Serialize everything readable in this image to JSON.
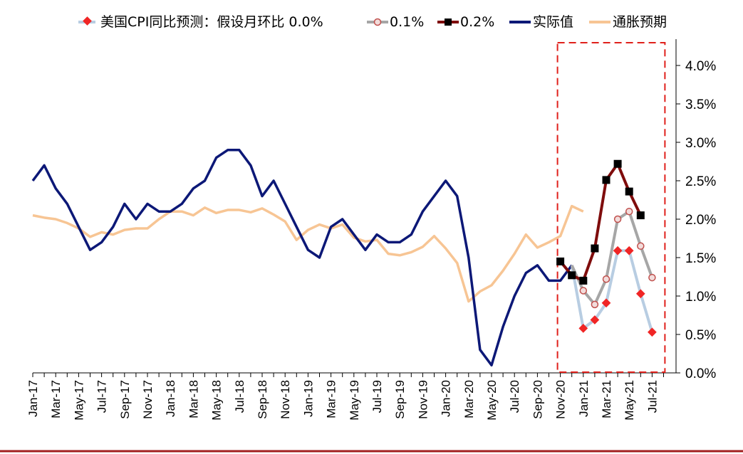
{
  "chart_data": {
    "type": "line",
    "legend": {
      "placement": "top",
      "prefix": "美国CPI同比预测：假设月环比",
      "entries": [
        {
          "key": "s0",
          "label": "0.0%"
        },
        {
          "key": "s1",
          "label": "0.1%"
        },
        {
          "key": "s2",
          "label": "0.2%"
        },
        {
          "key": "actual",
          "label": "实际值"
        },
        {
          "key": "expect",
          "label": "通胀预期"
        }
      ]
    },
    "x_tick_labels": [
      "Jan-17",
      "Mar-17",
      "May-17",
      "Jul-17",
      "Sep-17",
      "Nov-17",
      "Jan-18",
      "Mar-18",
      "May-18",
      "Jul-18",
      "Sep-18",
      "Nov-18",
      "Jan-19",
      "Mar-19",
      "May-19",
      "Jul-19",
      "Sep-19",
      "Nov-19",
      "Jan-20",
      "Mar-20",
      "May-20",
      "Jul-20",
      "Sep-20",
      "Nov-20",
      "Jan-21",
      "Mar-21",
      "May-21",
      "Jul-21"
    ],
    "x_start": "Jan-17",
    "x_interval": "month",
    "y_axis": {
      "position": "right",
      "min": 0,
      "max": 4.0,
      "step": 0.5,
      "format": "percent"
    },
    "y_tick_labels": [
      "0.0%",
      "0.5%",
      "1.0%",
      "1.5%",
      "2.0%",
      "2.5%",
      "3.0%",
      "3.5%",
      "4.0%"
    ],
    "highlight_box": {
      "from": "Nov-20",
      "to": "Jul-21",
      "style": "dashed",
      "color": "#e0201b"
    },
    "series": [
      {
        "key": "actual",
        "name": "实际值",
        "color": "#0c1877",
        "start": "Jan-17",
        "values": [
          2.5,
          2.7,
          2.4,
          2.2,
          1.9,
          1.6,
          1.7,
          1.9,
          2.2,
          2.0,
          2.2,
          2.1,
          2.1,
          2.2,
          2.4,
          2.5,
          2.8,
          2.9,
          2.9,
          2.7,
          2.3,
          2.5,
          2.2,
          1.9,
          1.6,
          1.5,
          1.9,
          2.0,
          1.8,
          1.6,
          1.8,
          1.7,
          1.7,
          1.8,
          2.1,
          2.3,
          2.5,
          2.3,
          1.5,
          0.3,
          0.1,
          0.6,
          1.0,
          1.3,
          1.4,
          1.2,
          1.2,
          1.4
        ]
      },
      {
        "key": "expect",
        "name": "通胀预期",
        "color": "#f7c594",
        "start": "Jan-17",
        "values": [
          2.05,
          2.02,
          2.0,
          1.95,
          1.88,
          1.77,
          1.83,
          1.8,
          1.86,
          1.88,
          1.88,
          2.0,
          2.1,
          2.1,
          2.05,
          2.15,
          2.08,
          2.12,
          2.12,
          2.09,
          2.14,
          2.06,
          1.97,
          1.73,
          1.86,
          1.93,
          1.88,
          1.93,
          1.76,
          1.71,
          1.73,
          1.55,
          1.53,
          1.57,
          1.64,
          1.78,
          1.62,
          1.43,
          0.93,
          1.06,
          1.14,
          1.33,
          1.55,
          1.8,
          1.63,
          1.7,
          1.78,
          2.17,
          2.1
        ]
      },
      {
        "key": "s0",
        "name": "0.0%",
        "color": "#b8cde2",
        "marker": "diamond",
        "marker_color": "#f02525",
        "start": "Dec-20",
        "values": [
          1.4,
          0.58,
          0.69,
          0.91,
          1.59,
          1.59,
          1.03,
          0.53
        ]
      },
      {
        "key": "s1",
        "name": "0.1%",
        "color": "#a6a6a6",
        "marker": "circle",
        "marker_color": "#c0504d",
        "start": "Dec-20",
        "values": [
          1.4,
          1.07,
          0.89,
          1.22,
          2.0,
          2.1,
          1.65,
          1.24
        ]
      },
      {
        "key": "s2",
        "name": "0.2%",
        "color": "#7f0c0c",
        "marker": "square",
        "marker_color": "#000000",
        "start": "Nov-20",
        "values": [
          1.45,
          1.27,
          1.2,
          1.62,
          2.51,
          2.72,
          2.36,
          2.05
        ]
      }
    ]
  }
}
